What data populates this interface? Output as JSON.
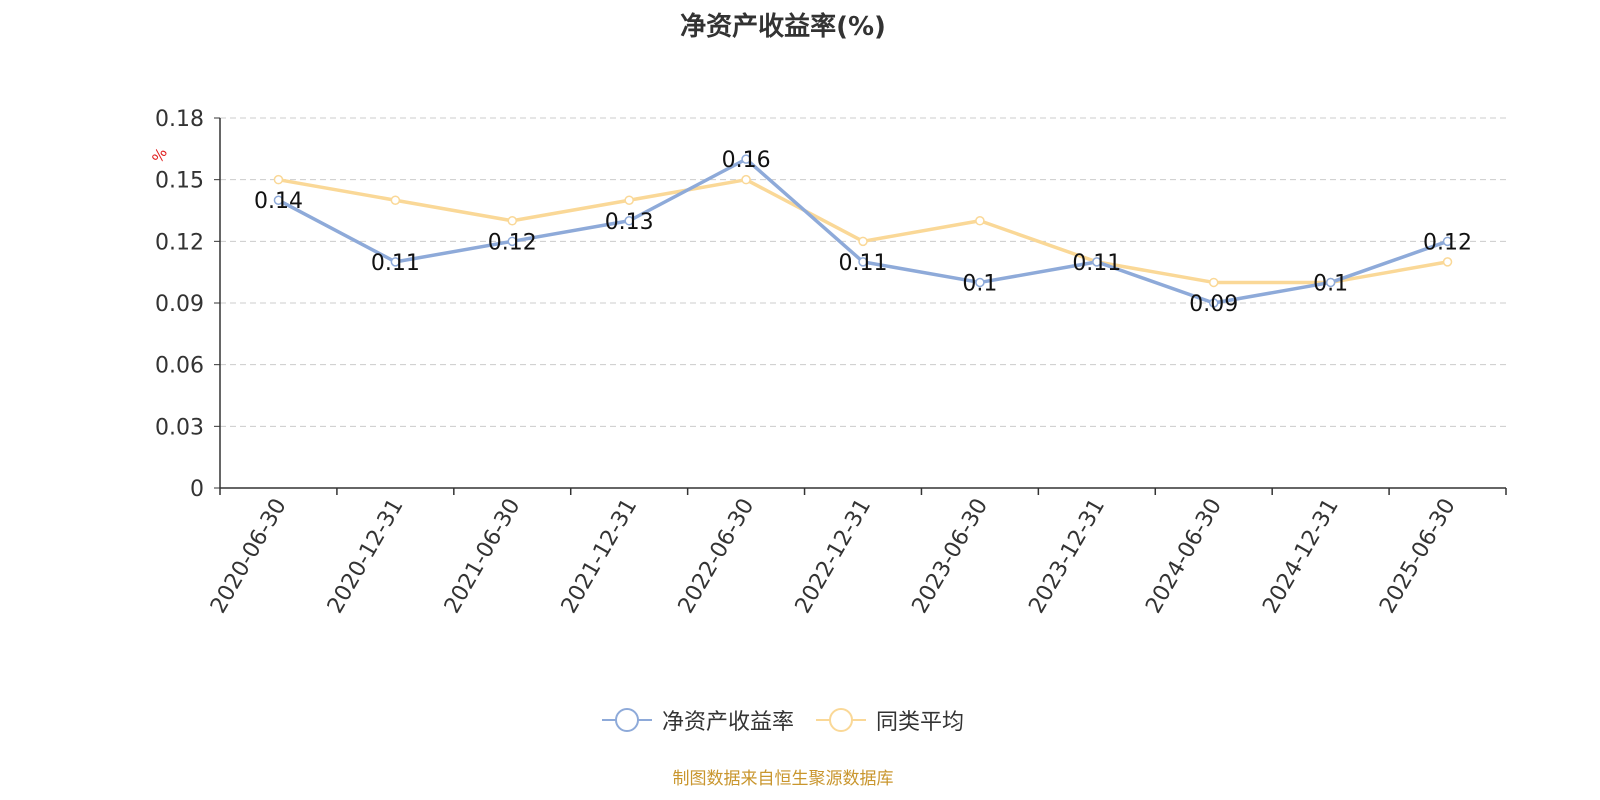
{
  "title": "净资产收益率(%)",
  "source": "制图数据来自恒生聚源数据库",
  "colors": {
    "series1": "#8eaad9",
    "series2": "#fad897",
    "grid": "#cccccc",
    "axis": "#333333",
    "unit": "#e02020",
    "source": "#c9962e"
  },
  "chart_data": {
    "type": "line",
    "title": "净资产收益率(%)",
    "ylabel": "%",
    "ylim": [
      0,
      0.18
    ],
    "yticks": [
      "0",
      "0.03",
      "0.06",
      "0.09",
      "0.12",
      "0.15",
      "0.18"
    ],
    "grid": true,
    "legend_position": "bottom",
    "categories": [
      "2020-06-30",
      "2020-12-31",
      "2021-06-30",
      "2021-12-31",
      "2022-06-30",
      "2022-12-31",
      "2023-06-30",
      "2023-12-31",
      "2024-06-30",
      "2024-12-31",
      "2025-06-30"
    ],
    "series": [
      {
        "name": "净资产收益率",
        "values": [
          0.14,
          0.11,
          0.12,
          0.13,
          0.16,
          0.11,
          0.1,
          0.11,
          0.09,
          0.1,
          0.12
        ],
        "labels": [
          "0.14",
          "0.11",
          "0.12",
          "0.13",
          "0.16",
          "0.11",
          "0.1",
          "0.11",
          "0.09",
          "0.1",
          "0.12"
        ]
      },
      {
        "name": "同类平均",
        "values": [
          0.15,
          0.14,
          0.13,
          0.14,
          0.15,
          0.12,
          0.13,
          0.11,
          0.1,
          0.1,
          0.11
        ]
      }
    ]
  }
}
